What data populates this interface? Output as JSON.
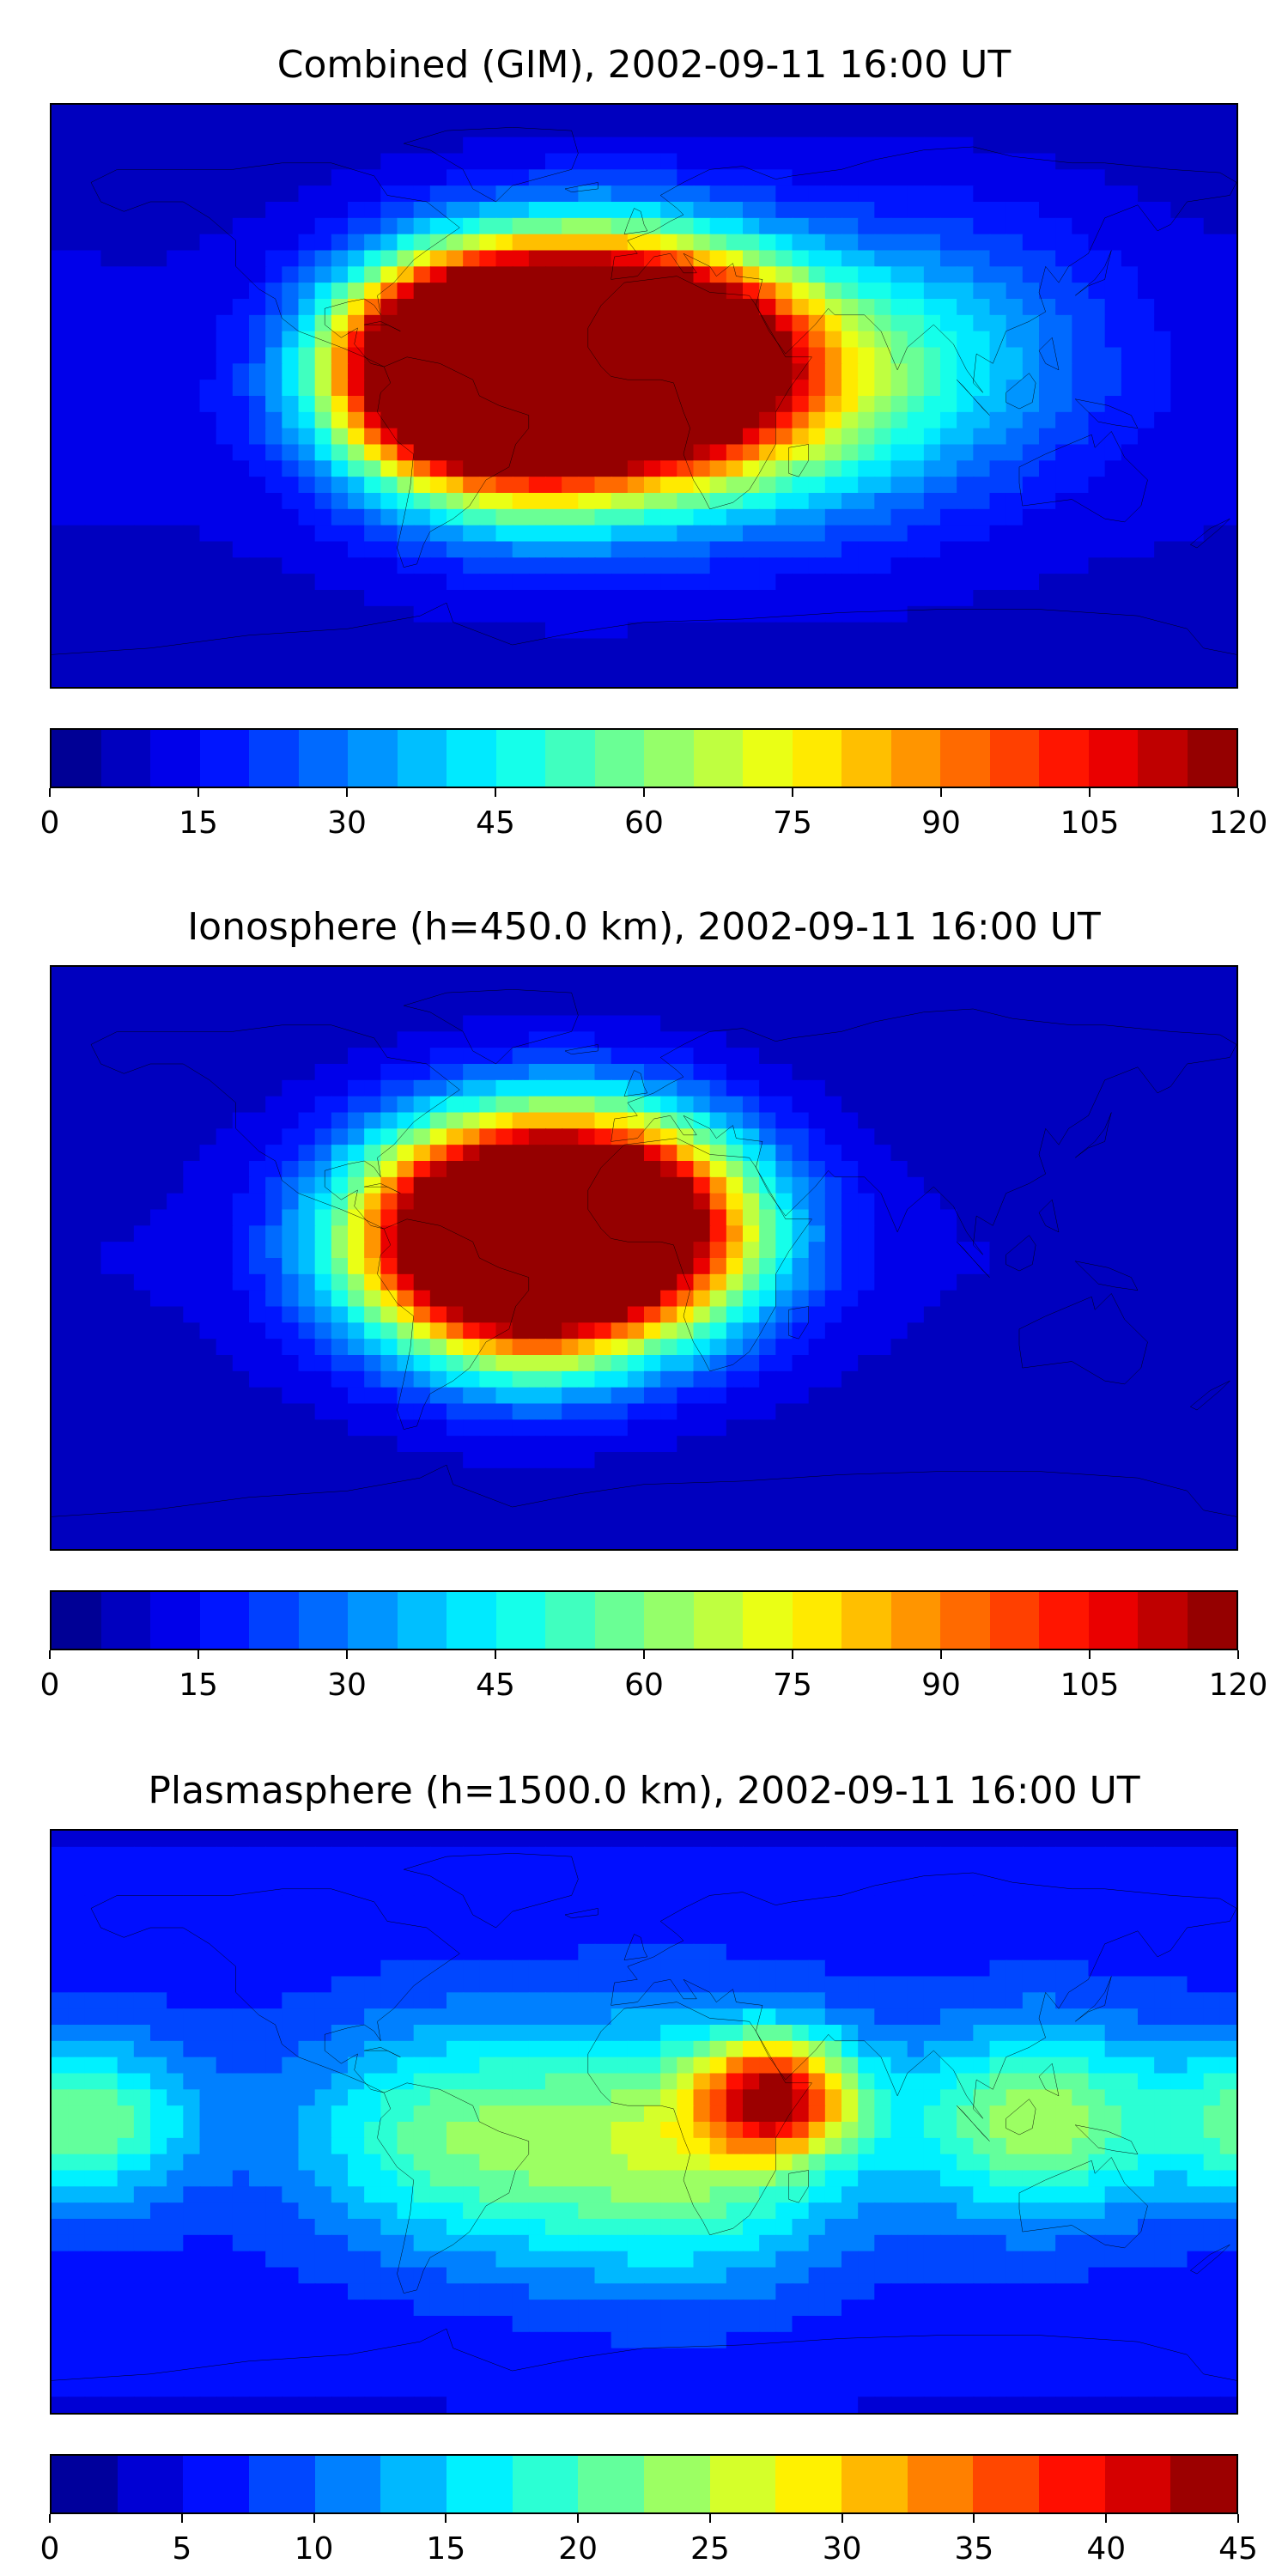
{
  "panels": [
    {
      "title": "Combined (GIM), 2002-09-11 16:00 UT",
      "colorbar": {
        "min": 0,
        "max": 120,
        "levels": 24,
        "tick_labels": [
          "0",
          "15",
          "30",
          "45",
          "60",
          "75",
          "90",
          "105",
          "120"
        ]
      },
      "hotspots": [
        {
          "lon": -50,
          "lat": 15,
          "value": 110,
          "spread": 28
        },
        {
          "lon": -10,
          "lat": 18,
          "value": 104,
          "spread": 32
        },
        {
          "lon": -30,
          "lat": -2,
          "value": 100,
          "spread": 35
        },
        {
          "lon": 15,
          "lat": 10,
          "value": 85,
          "spread": 30
        },
        {
          "lon": -60,
          "lat": 5,
          "value": 92,
          "spread": 30
        },
        {
          "lon": 40,
          "lat": 0,
          "value": 50,
          "spread": 40
        },
        {
          "lon": 90,
          "lat": 15,
          "value": 35,
          "spread": 40
        }
      ],
      "background": 12
    },
    {
      "title": "Ionosphere  (h=450.0 km), 2002-09-11 16:00 UT",
      "colorbar": {
        "min": 0,
        "max": 120,
        "levels": 24,
        "tick_labels": [
          "0",
          "15",
          "30",
          "45",
          "60",
          "75",
          "90",
          "105",
          "120"
        ]
      },
      "hotspots": [
        {
          "lon": -40,
          "lat": 15,
          "value": 85,
          "spread": 30
        },
        {
          "lon": -10,
          "lat": 18,
          "value": 82,
          "spread": 30
        },
        {
          "lon": -30,
          "lat": -8,
          "value": 84,
          "spread": 30
        },
        {
          "lon": -60,
          "lat": 5,
          "value": 75,
          "spread": 32
        },
        {
          "lon": 10,
          "lat": 5,
          "value": 60,
          "spread": 30
        }
      ],
      "background": 10
    },
    {
      "title": "Plasmasphere (h=1500.0 km), 2002-09-11 16:00 UT",
      "colorbar": {
        "min": 0,
        "max": 45,
        "levels": 18,
        "tick_labels": [
          "0",
          "5",
          "10",
          "15",
          "20",
          "25",
          "30",
          "35",
          "40",
          "45"
        ]
      },
      "hotspots": [
        {
          "lon": 40,
          "lat": 8,
          "value": 37,
          "spread": 18
        },
        {
          "lon": 120,
          "lat": 0,
          "value": 24,
          "spread": 30
        },
        {
          "lon": -60,
          "lat": -5,
          "value": 20,
          "spread": 35
        },
        {
          "lon": 10,
          "lat": -10,
          "value": 24,
          "spread": 40
        },
        {
          "lon": -170,
          "lat": 0,
          "value": 22,
          "spread": 25
        }
      ],
      "background": 8
    }
  ]
}
